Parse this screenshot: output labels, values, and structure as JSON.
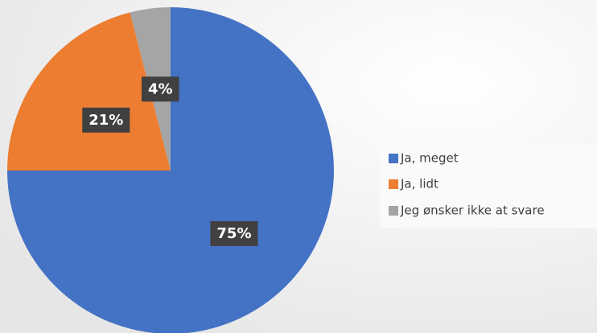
{
  "chart_data": {
    "type": "pie",
    "categories": [
      "Ja, meget",
      "Ja, lidt",
      "Jeg ønsker ikke at svare"
    ],
    "values": [
      75,
      21,
      4
    ],
    "value_labels": [
      "75%",
      "21%",
      "4%"
    ],
    "colors": [
      "#4472c4",
      "#ed7d31",
      "#a5a5a5"
    ],
    "legend": "right"
  }
}
